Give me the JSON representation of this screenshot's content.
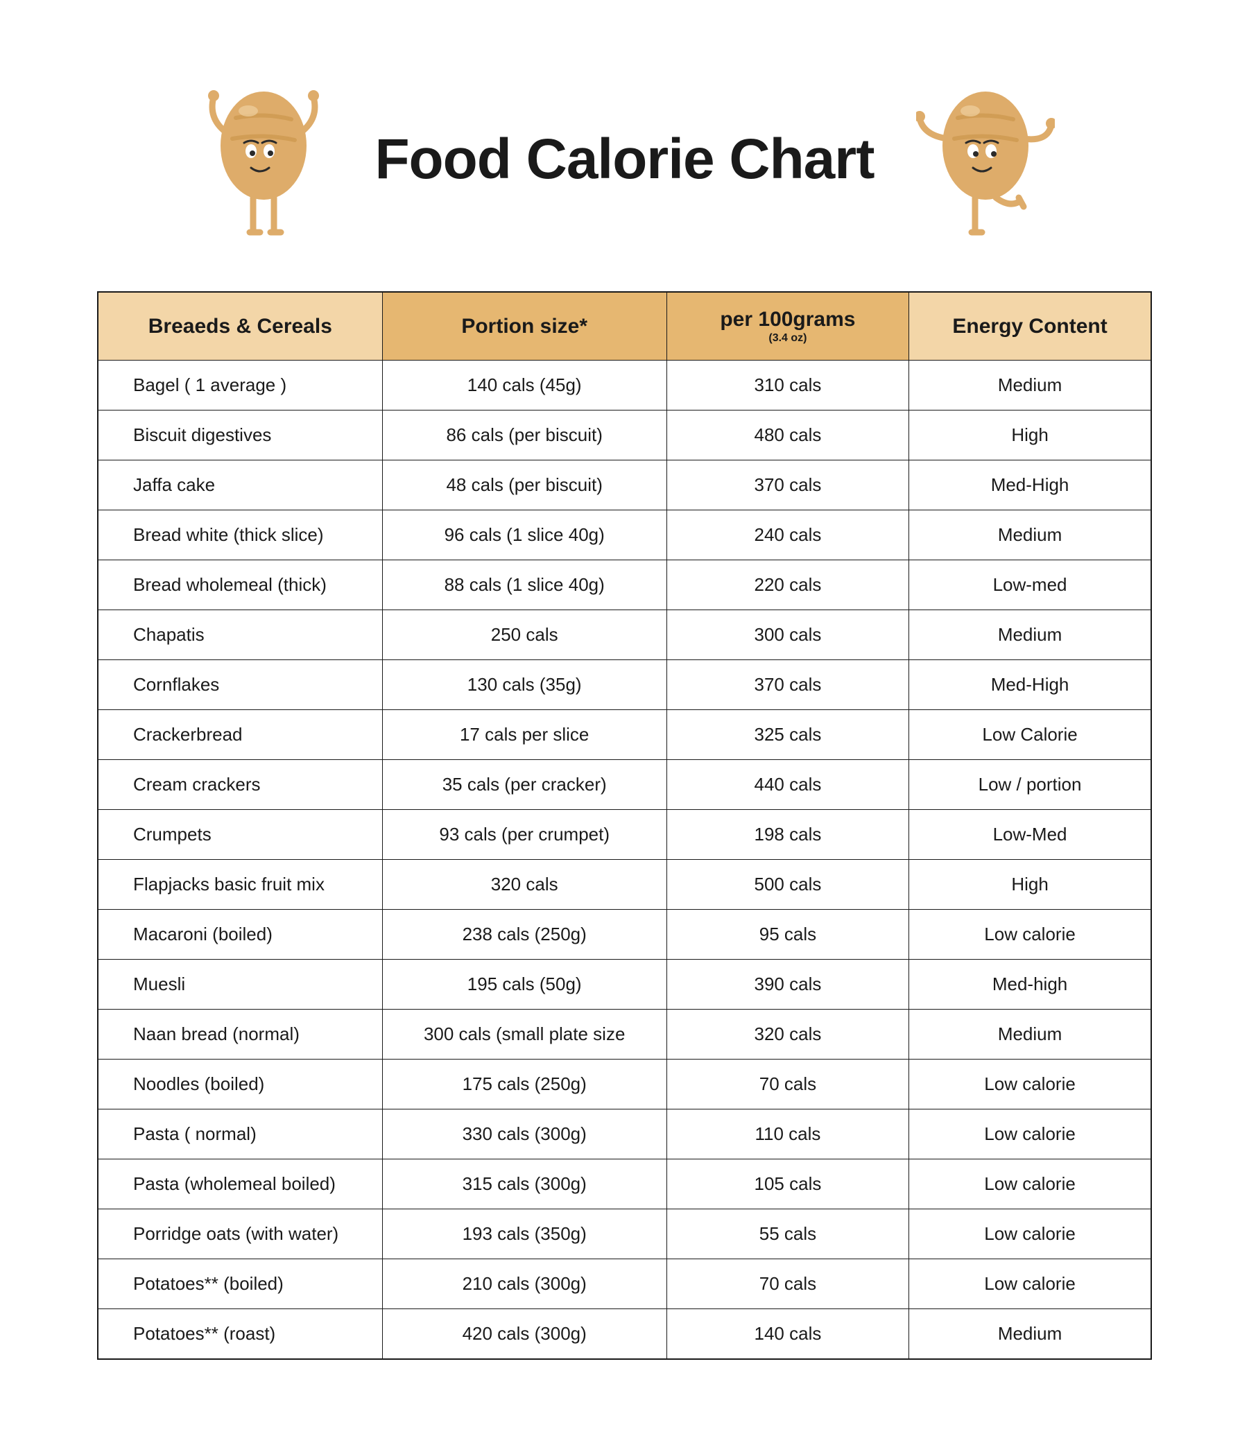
{
  "title": "Food Calorie Chart",
  "header_bg_dark": "#e6b771",
  "header_bg_light": "#f3d6a8",
  "border_color": "#1a1a1a",
  "columns": [
    {
      "label": "Breaeds & Cereals",
      "sub": "",
      "shade": "light"
    },
    {
      "label": "Portion size*",
      "sub": "",
      "shade": "dark"
    },
    {
      "label": "per 100grams",
      "sub": "(3.4 oz)",
      "shade": "dark"
    },
    {
      "label": "Energy Content",
      "sub": "",
      "shade": "light"
    }
  ],
  "rows": [
    [
      "Bagel ( 1 average )",
      "140 cals (45g)",
      "310 cals",
      "Medium"
    ],
    [
      "Biscuit digestives",
      "86 cals (per biscuit)",
      "480 cals",
      "High"
    ],
    [
      "Jaffa cake",
      "48 cals (per biscuit)",
      "370 cals",
      "Med-High"
    ],
    [
      "Bread white (thick slice)",
      "96 cals (1 slice 40g)",
      "240 cals",
      "Medium"
    ],
    [
      "Bread wholemeal (thick)",
      "88 cals (1 slice 40g)",
      "220 cals",
      "Low-med"
    ],
    [
      "Chapatis",
      "250 cals",
      "300 cals",
      "Medium"
    ],
    [
      "Cornflakes",
      "130 cals (35g)",
      "370 cals",
      "Med-High"
    ],
    [
      "Crackerbread",
      "17 cals per slice",
      "325 cals",
      "Low Calorie"
    ],
    [
      "Cream crackers",
      "35 cals (per cracker)",
      "440 cals",
      "Low / portion"
    ],
    [
      "Crumpets",
      "93 cals (per crumpet)",
      "198 cals",
      "Low-Med"
    ],
    [
      "Flapjacks basic fruit mix",
      "320 cals",
      "500 cals",
      "High"
    ],
    [
      "Macaroni (boiled)",
      "238 cals (250g)",
      "95 cals",
      "Low calorie"
    ],
    [
      "Muesli",
      "195 cals (50g)",
      "390 cals",
      "Med-high"
    ],
    [
      "Naan bread (normal)",
      "300 cals (small plate size",
      "320 cals",
      "Medium"
    ],
    [
      "Noodles (boiled)",
      "175 cals (250g)",
      "70 cals",
      "Low calorie"
    ],
    [
      "Pasta ( normal)",
      "330 cals (300g)",
      "110 cals",
      "Low calorie"
    ],
    [
      "Pasta (wholemeal boiled)",
      "315 cals (300g)",
      "105 cals",
      "Low calorie"
    ],
    [
      "Porridge oats (with water)",
      "193 cals (350g)",
      "55 cals",
      "Low calorie"
    ],
    [
      "Potatoes** (boiled)",
      "210 cals (300g)",
      "70 cals",
      "Low calorie"
    ],
    [
      "Potatoes** (roast)",
      "420 cals (300g)",
      "140 cals",
      "Medium"
    ]
  ],
  "potato_fill": "#deac6a",
  "potato_stripe": "#d19d55"
}
